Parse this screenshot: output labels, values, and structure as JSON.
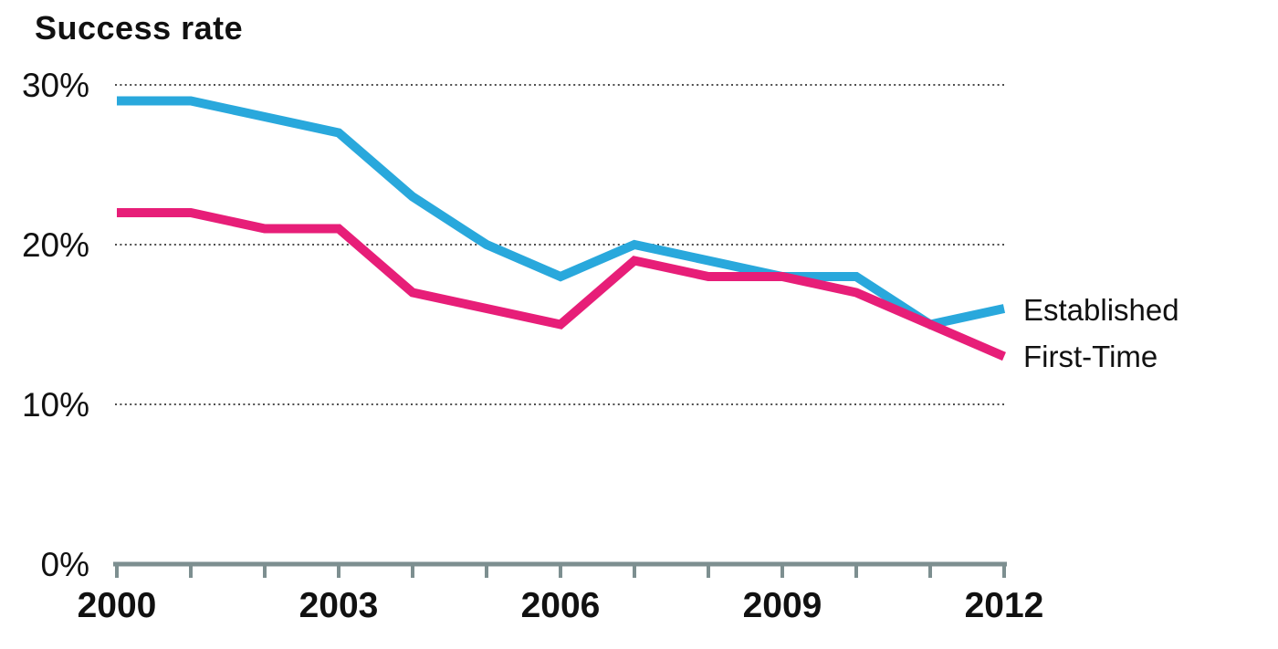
{
  "chart_data": {
    "type": "line",
    "title": "Success rate",
    "x": [
      2000,
      2001,
      2002,
      2003,
      2004,
      2005,
      2006,
      2007,
      2008,
      2009,
      2010,
      2011,
      2012
    ],
    "x_labeled_ticks": [
      "2000",
      "2003",
      "2006",
      "2009",
      "2012"
    ],
    "x_label_every": 3,
    "series": [
      {
        "name": "Established",
        "color": "#29A8DC",
        "values": [
          29,
          29,
          28,
          27,
          23,
          20,
          18,
          20,
          19,
          18,
          18,
          15,
          16
        ]
      },
      {
        "name": "First-Time",
        "color": "#E71E78",
        "values": [
          22,
          22,
          21,
          21,
          17,
          16,
          15,
          19,
          18,
          18,
          17,
          15,
          13
        ]
      }
    ],
    "y_ticks": [
      {
        "label": "30%",
        "value": 30
      },
      {
        "label": "20%",
        "value": 20
      },
      {
        "label": "10%",
        "value": 10
      },
      {
        "label": "0%",
        "value": 0
      }
    ],
    "ylim": [
      0,
      30
    ],
    "grid": "dotted horizontal at 10, 20, 30",
    "legend_position": "right-of-line-ends",
    "label_suffix": "%"
  },
  "colors": {
    "established_line": "#29A8DC",
    "first_time_line": "#E71E78",
    "axis": "#7D8F90",
    "gridline": "#4D4D4D",
    "text": "#111111"
  }
}
